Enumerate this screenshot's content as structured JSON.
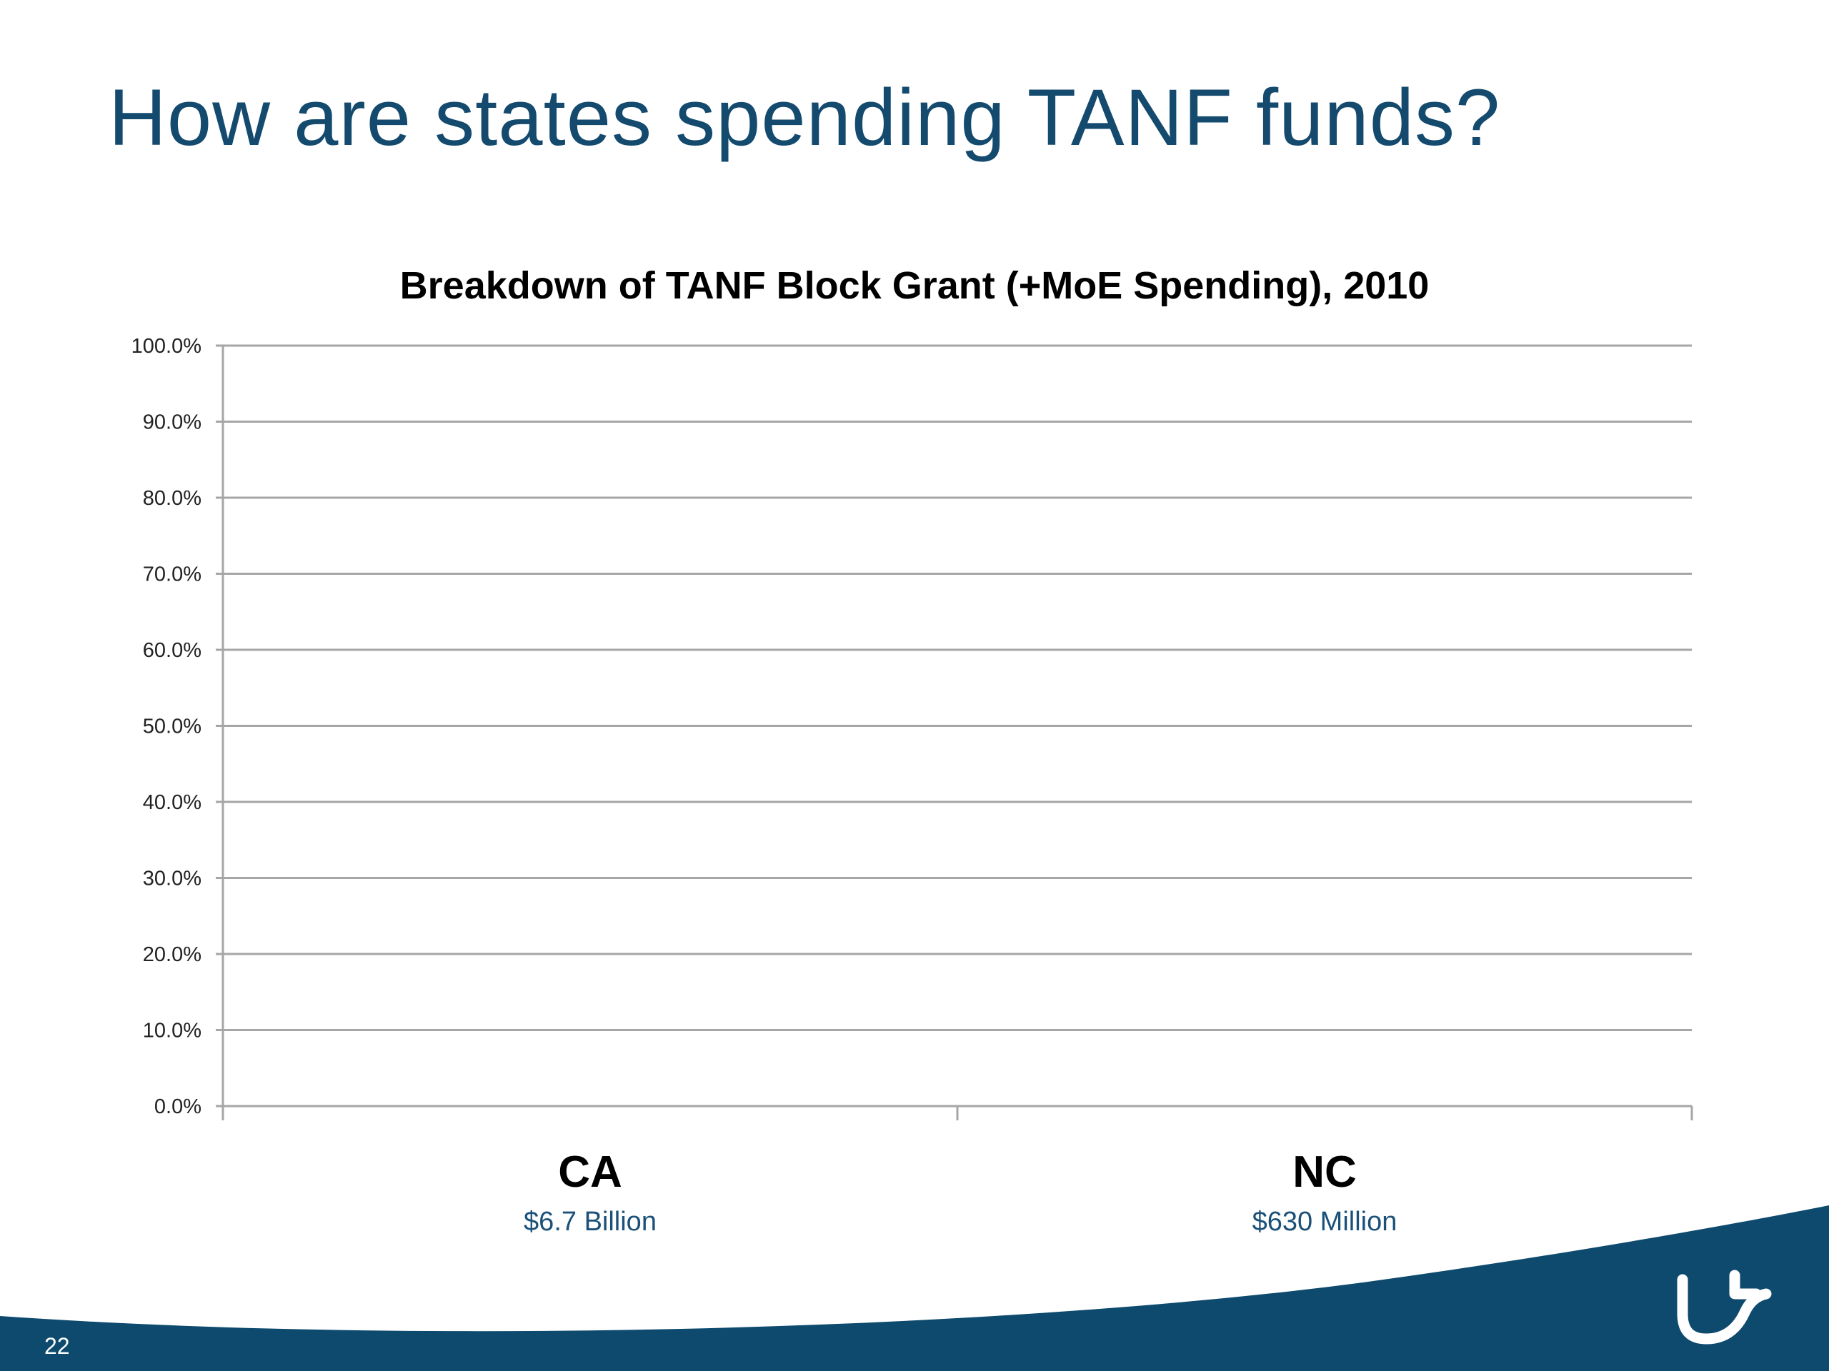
{
  "slide": {
    "title": "How are states spending TANF funds?",
    "page_number": "22"
  },
  "chart_data": {
    "type": "bar",
    "title": "Breakdown of TANF Block Grant (+MoE Spending), 2010",
    "categories": [
      "CA",
      "NC"
    ],
    "category_sublabels": [
      "$6.7 Billion",
      "$630 Million"
    ],
    "series": [],
    "yticks": [
      "0.0%",
      "10.0%",
      "20.0%",
      "30.0%",
      "40.0%",
      "50.0%",
      "60.0%",
      "70.0%",
      "80.0%",
      "90.0%",
      "100.0%"
    ],
    "ylim": [
      0,
      100
    ],
    "grid": true,
    "xlabel": "",
    "ylabel": ""
  },
  "colors": {
    "title": "#144a6e",
    "band": "#0d4a6e",
    "sublabel": "#1b5078",
    "gridline": "#a6a6a6"
  },
  "logo": {
    "icon": "university-logo-icon"
  }
}
